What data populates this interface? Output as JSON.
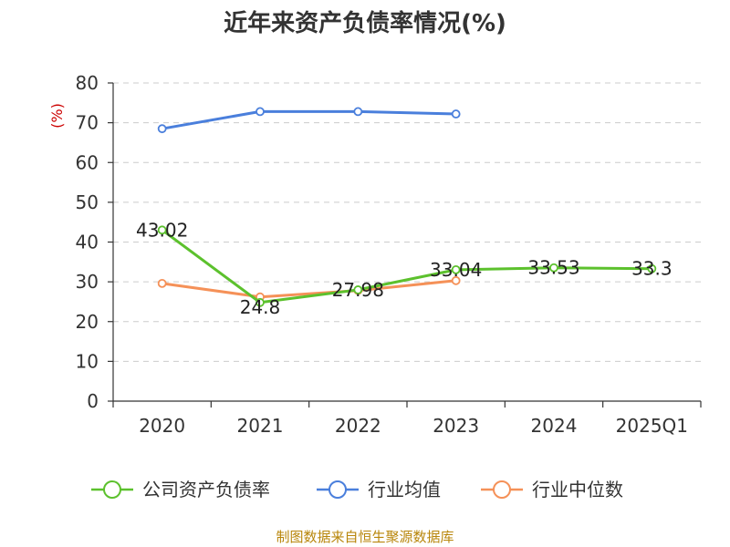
{
  "chart_data": {
    "type": "line",
    "title": "近年来资产负债率情况(%)",
    "ylabel": "(%)",
    "xlabel": "",
    "categories": [
      "2020",
      "2021",
      "2022",
      "2023",
      "2024",
      "2025Q1"
    ],
    "ylim": [
      0,
      80
    ],
    "yticks": [
      0,
      10,
      20,
      30,
      40,
      50,
      60,
      70,
      80
    ],
    "grid": true,
    "legend_position": "bottom",
    "series": [
      {
        "name": "公司资产负债率",
        "color": "#5cc12d",
        "values": [
          43.02,
          24.8,
          27.98,
          33.04,
          33.53,
          33.3
        ],
        "labels": [
          "43.02",
          "24.8",
          "27.98",
          "33.04",
          "33.53",
          "33.3"
        ]
      },
      {
        "name": "行业均值",
        "color": "#4a7fdc",
        "values": [
          68.5,
          72.8,
          72.8,
          72.2,
          null,
          null
        ]
      },
      {
        "name": "行业中位数",
        "color": "#f59158",
        "values": [
          29.6,
          26.2,
          27.8,
          30.3,
          null,
          null
        ]
      }
    ],
    "source": "制图数据来自恒生聚源数据库"
  }
}
